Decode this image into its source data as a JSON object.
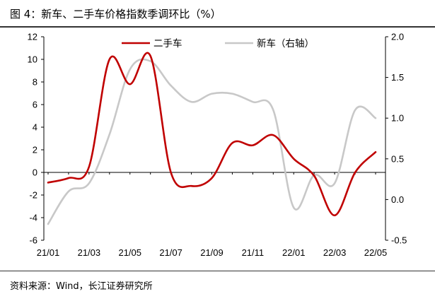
{
  "title": "图 4：新车、二手车价格指数季调环比（%）",
  "source": "资料来源：Wind，长江证券研究所",
  "chart_data": {
    "type": "line",
    "x": [
      "21/01",
      "21/02",
      "21/03",
      "21/04",
      "21/05",
      "21/06",
      "21/07",
      "21/08",
      "21/09",
      "21/10",
      "21/11",
      "21/12",
      "22/01",
      "22/02",
      "22/03",
      "22/04",
      "22/05"
    ],
    "x_tick_labels": [
      "21/01",
      "21/03",
      "21/05",
      "21/07",
      "21/09",
      "21/11",
      "22/01",
      "22/03",
      "22/05"
    ],
    "y_left": {
      "min": -6,
      "max": 12,
      "ticks": [
        "-6",
        "-4",
        "-2",
        "0",
        "2",
        "4",
        "6",
        "8",
        "10",
        "12"
      ]
    },
    "y_right": {
      "min": -0.5,
      "max": 2.0,
      "ticks": [
        "-0.5",
        "0.0",
        "0.5",
        "1.0",
        "1.5",
        "2.0"
      ]
    },
    "series": [
      {
        "name": "二手车",
        "axis": "left",
        "color": "#c00000",
        "values": [
          -0.9,
          -0.5,
          0.5,
          10.0,
          7.8,
          10.3,
          0.0,
          -1.2,
          -0.5,
          2.6,
          2.4,
          3.3,
          1.2,
          -0.3,
          -3.8,
          0.0,
          1.8
        ]
      },
      {
        "name": "新车（右轴）",
        "axis": "right",
        "color": "#c8c8c8",
        "values": [
          -0.3,
          0.1,
          0.2,
          0.8,
          1.6,
          1.7,
          1.4,
          1.2,
          1.3,
          1.3,
          1.2,
          1.1,
          -0.1,
          0.3,
          0.2,
          1.1,
          1.0
        ]
      }
    ],
    "legend_position": "top",
    "grid": false
  }
}
